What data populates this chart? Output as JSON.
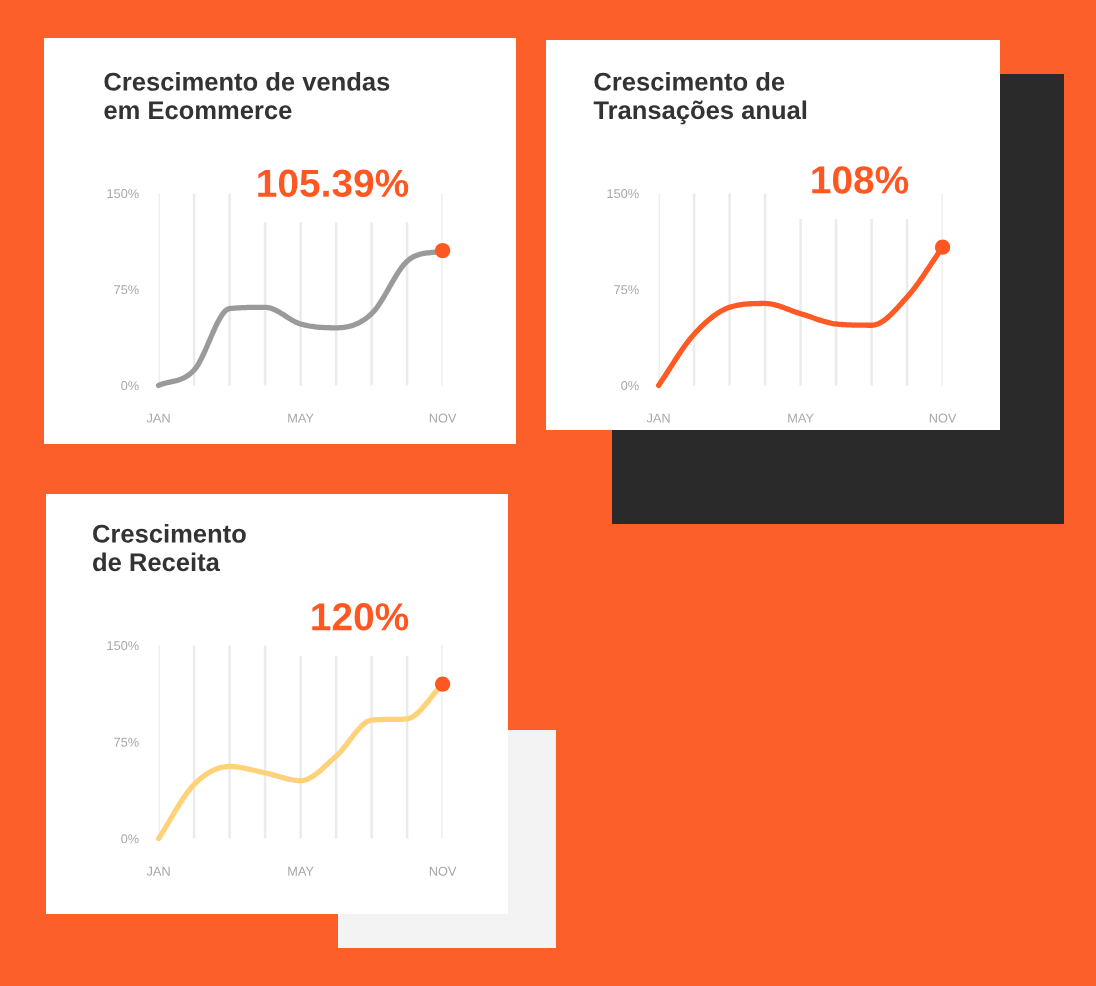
{
  "chart_data": [
    {
      "type": "line",
      "title": "Crescimento de vendas\nem Ecommerce",
      "categories": [
        "JAN",
        null,
        null,
        null,
        "MAY",
        null,
        null,
        null,
        "NOV"
      ],
      "ylim": [
        0,
        150
      ],
      "yticks": [
        {
          "value": 0,
          "label": "0%"
        },
        {
          "value": 75,
          "label": "75%"
        },
        {
          "value": 150,
          "label": "150%"
        }
      ],
      "grid": "x",
      "series": [
        {
          "type": "line",
          "color": "#9a9a9a",
          "values": [
            0,
            12,
            60,
            61,
            48,
            45,
            56,
            97,
            105.39
          ]
        },
        {
          "type": "scatter",
          "color": "#ff5722",
          "marker": "circle",
          "values": [
            null,
            null,
            null,
            null,
            null,
            null,
            null,
            null,
            105.39
          ],
          "value_labels": [
            null,
            null,
            null,
            null,
            null,
            null,
            null,
            null,
            "105.39%"
          ]
        }
      ]
    },
    {
      "type": "line",
      "title": "Crescimento de\nTransações anual",
      "categories": [
        "JAN",
        null,
        null,
        null,
        "MAY",
        null,
        null,
        null,
        "NOV"
      ],
      "ylim": [
        0,
        150
      ],
      "yticks": [
        {
          "value": 0,
          "label": "0%"
        },
        {
          "value": 75,
          "label": "75%"
        },
        {
          "value": 150,
          "label": "150%"
        }
      ],
      "grid": "x",
      "series": [
        {
          "type": "line",
          "color": "#ff5a24",
          "values": [
            0,
            40,
            61,
            64,
            56,
            48,
            47,
            69,
            108
          ]
        },
        {
          "type": "scatter",
          "color": "#ff5722",
          "marker": "circle",
          "values": [
            null,
            null,
            null,
            null,
            null,
            null,
            null,
            null,
            108
          ],
          "value_labels": [
            null,
            null,
            null,
            null,
            null,
            null,
            null,
            null,
            "108%"
          ]
        }
      ]
    },
    {
      "type": "line",
      "title": "Crescimento\nde Receita",
      "categories": [
        "JAN",
        null,
        null,
        null,
        "MAY",
        null,
        null,
        null,
        "NOV"
      ],
      "ylim": [
        0,
        150
      ],
      "yticks": [
        {
          "value": 0,
          "label": "0%"
        },
        {
          "value": 75,
          "label": "75%"
        },
        {
          "value": 150,
          "label": "150%"
        }
      ],
      "grid": "x",
      "series": [
        {
          "type": "line",
          "color": "#fdd27a",
          "values": [
            0,
            42,
            56,
            51,
            45,
            64,
            92,
            93,
            120
          ]
        },
        {
          "type": "scatter",
          "color": "#ff5722",
          "marker": "circle",
          "values": [
            null,
            null,
            null,
            null,
            null,
            null,
            null,
            null,
            120
          ],
          "value_labels": [
            null,
            null,
            null,
            null,
            null,
            null,
            null,
            null,
            "120%"
          ]
        }
      ]
    }
  ]
}
